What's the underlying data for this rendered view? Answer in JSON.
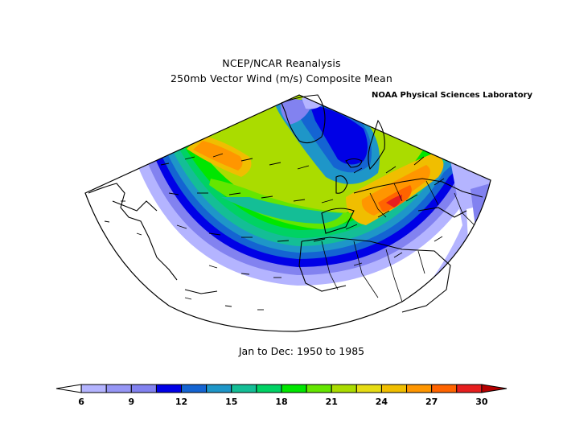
{
  "title": {
    "line1": "NCEP/NCAR Reanalysis",
    "line2": "250mb Vector Wind (m/s) Composite Mean"
  },
  "credit": "NOAA Physical Sciences Laboratory",
  "period": "Jan to Dec: 1950 to 1985",
  "colorbar": {
    "tick_labels": [
      "6",
      "9",
      "12",
      "15",
      "18",
      "21",
      "24",
      "27",
      "30"
    ],
    "colors": [
      "#ffffff",
      "#b4b4ff",
      "#9696f5",
      "#8282f0",
      "#0000e6",
      "#1464d2",
      "#1e96c8",
      "#14be96",
      "#00d264",
      "#00e600",
      "#64e600",
      "#aadc00",
      "#e6dc14",
      "#f0be00",
      "#ff9600",
      "#ff6400",
      "#e61e1e",
      "#b40000"
    ]
  },
  "map": {
    "region": "North Atlantic / Europe / North Africa",
    "variable": "250mb vector wind speed",
    "units": "m/s"
  }
}
